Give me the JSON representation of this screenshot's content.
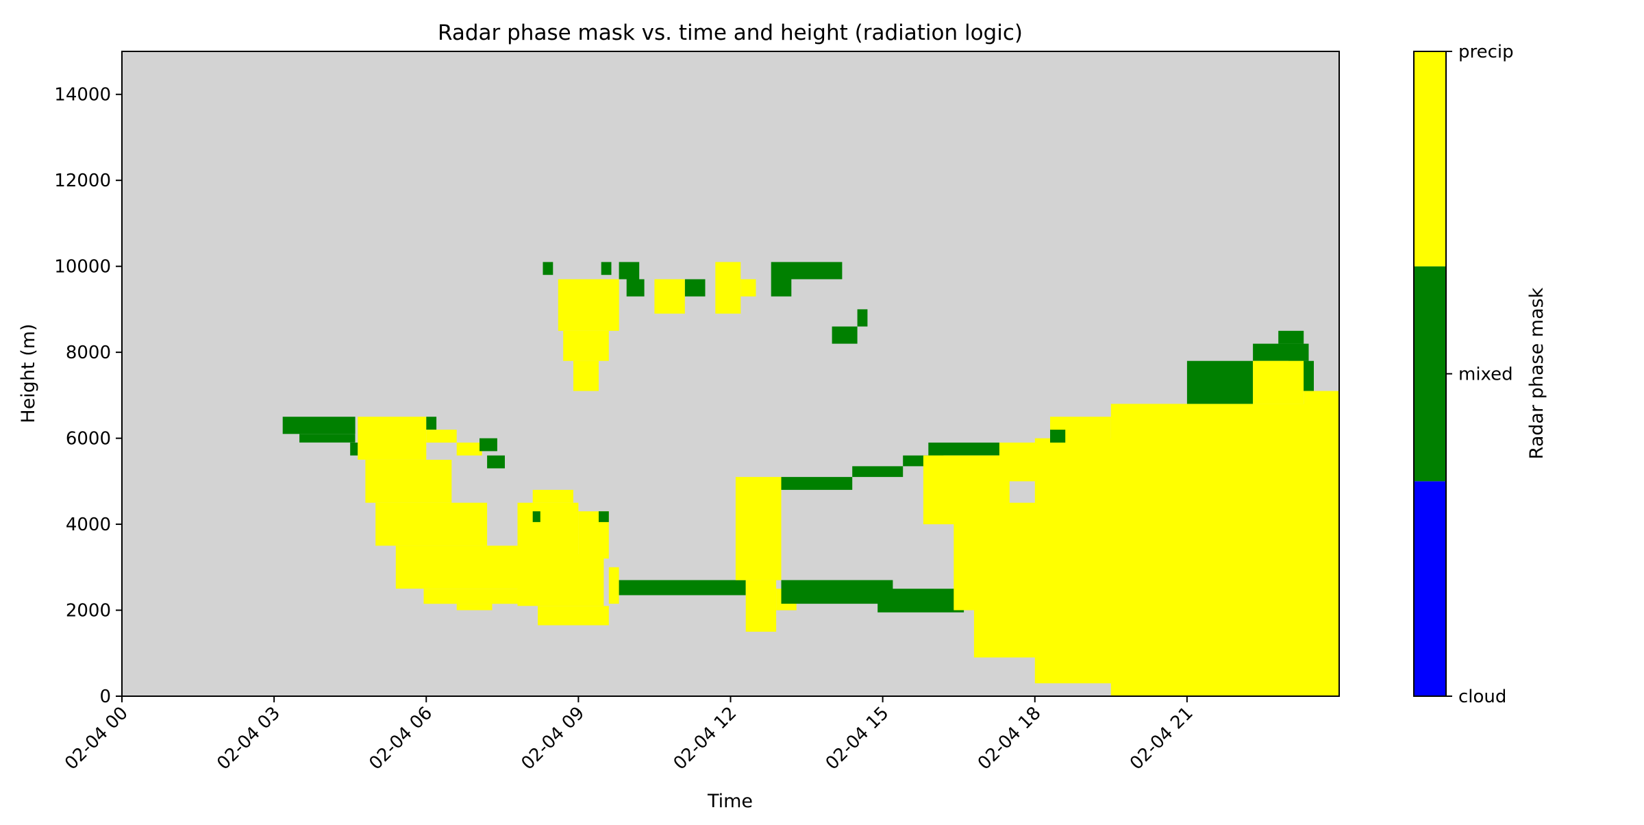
{
  "chart_data": {
    "type": "heatmap",
    "title": "Radar phase mask vs. time and height (radiation logic)",
    "xlabel": "Time",
    "ylabel": "Height (m)",
    "x_unit": "hours since 02-04 00:00",
    "xlim": [
      0,
      24
    ],
    "ylim": [
      0,
      15000
    ],
    "x_ticks": [
      0,
      3,
      6,
      9,
      12,
      15,
      18,
      21
    ],
    "x_tick_labels": [
      "02-04 00",
      "02-04 03",
      "02-04 06",
      "02-04 09",
      "02-04 12",
      "02-04 15",
      "02-04 18",
      "02-04 21"
    ],
    "y_ticks": [
      0,
      2000,
      4000,
      6000,
      8000,
      10000,
      12000,
      14000
    ],
    "y_tick_labels": [
      "0",
      "2000",
      "4000",
      "6000",
      "8000",
      "10000",
      "12000",
      "14000"
    ],
    "background_color": "#d3d3d3",
    "classes": [
      {
        "name": "cloud",
        "value": 0,
        "color": "#0000ff"
      },
      {
        "name": "mixed",
        "value": 1,
        "color": "#008000"
      },
      {
        "name": "precip",
        "value": 2,
        "color": "#ffff00"
      }
    ],
    "colorbar": {
      "label": "Radar phase mask",
      "tick_labels": [
        "cloud",
        "mixed",
        "precip"
      ]
    },
    "regions": [
      {
        "cls": "mixed",
        "t": [
          3.17,
          4.6
        ],
        "h": [
          6100,
          6500
        ]
      },
      {
        "cls": "mixed",
        "t": [
          3.5,
          4.6
        ],
        "h": [
          5900,
          6100
        ]
      },
      {
        "cls": "mixed",
        "t": [
          4.5,
          4.65
        ],
        "h": [
          5600,
          5900
        ]
      },
      {
        "cls": "precip",
        "t": [
          4.65,
          6.0
        ],
        "h": [
          5500,
          6500
        ]
      },
      {
        "cls": "precip",
        "t": [
          4.8,
          6.5
        ],
        "h": [
          4500,
          5500
        ]
      },
      {
        "cls": "precip",
        "t": [
          5.0,
          7.2
        ],
        "h": [
          3500,
          4500
        ]
      },
      {
        "cls": "precip",
        "t": [
          5.4,
          7.8
        ],
        "h": [
          2500,
          3500
        ]
      },
      {
        "cls": "precip",
        "t": [
          5.95,
          8.8
        ],
        "h": [
          2150,
          2500
        ]
      },
      {
        "cls": "precip",
        "t": [
          6.6,
          7.3
        ],
        "h": [
          2000,
          2150
        ]
      },
      {
        "cls": "precip",
        "t": [
          6.0,
          6.6
        ],
        "h": [
          5900,
          6200
        ]
      },
      {
        "cls": "precip",
        "t": [
          6.6,
          7.1
        ],
        "h": [
          5600,
          5900
        ]
      },
      {
        "cls": "mixed",
        "t": [
          6.0,
          6.2
        ],
        "h": [
          6200,
          6500
        ]
      },
      {
        "cls": "mixed",
        "t": [
          7.05,
          7.4
        ],
        "h": [
          5700,
          6000
        ]
      },
      {
        "cls": "mixed",
        "t": [
          7.2,
          7.55
        ],
        "h": [
          5300,
          5600
        ]
      },
      {
        "cls": "precip",
        "t": [
          7.8,
          9.0
        ],
        "h": [
          3300,
          4500
        ]
      },
      {
        "cls": "precip",
        "t": [
          7.8,
          9.5
        ],
        "h": [
          2100,
          3300
        ]
      },
      {
        "cls": "precip",
        "t": [
          8.2,
          9.6
        ],
        "h": [
          1650,
          2100
        ]
      },
      {
        "cls": "precip",
        "t": [
          8.1,
          8.9
        ],
        "h": [
          4500,
          4800
        ]
      },
      {
        "cls": "precip",
        "t": [
          9.0,
          9.6
        ],
        "h": [
          3200,
          4300
        ]
      },
      {
        "cls": "mixed",
        "t": [
          8.1,
          8.25
        ],
        "h": [
          4050,
          4300
        ]
      },
      {
        "cls": "mixed",
        "t": [
          9.4,
          9.6
        ],
        "h": [
          4050,
          4300
        ]
      },
      {
        "cls": "precip",
        "t": [
          9.6,
          9.8
        ],
        "h": [
          2150,
          3000
        ]
      },
      {
        "cls": "mixed",
        "t": [
          9.8,
          12.3
        ],
        "h": [
          2350,
          2700
        ]
      },
      {
        "cls": "precip",
        "t": [
          12.1,
          13.0
        ],
        "h": [
          2700,
          5100
        ]
      },
      {
        "cls": "precip",
        "t": [
          12.3,
          12.9
        ],
        "h": [
          1500,
          2700
        ]
      },
      {
        "cls": "precip",
        "t": [
          12.9,
          13.3
        ],
        "h": [
          2000,
          2500
        ]
      },
      {
        "cls": "mixed",
        "t": [
          13.0,
          15.2
        ],
        "h": [
          2150,
          2700
        ]
      },
      {
        "cls": "mixed",
        "t": [
          14.9,
          16.6
        ],
        "h": [
          1950,
          2500
        ]
      },
      {
        "cls": "mixed",
        "t": [
          13.0,
          14.4
        ],
        "h": [
          4800,
          5100
        ]
      },
      {
        "cls": "mixed",
        "t": [
          14.4,
          15.4
        ],
        "h": [
          5100,
          5350
        ]
      },
      {
        "cls": "mixed",
        "t": [
          15.4,
          16.2
        ],
        "h": [
          5350,
          5600
        ]
      },
      {
        "cls": "mixed",
        "t": [
          15.9,
          17.3
        ],
        "h": [
          5600,
          5900
        ]
      },
      {
        "cls": "precip",
        "t": [
          15.8,
          17.5
        ],
        "h": [
          4000,
          5600
        ]
      },
      {
        "cls": "precip",
        "t": [
          16.4,
          18.3
        ],
        "h": [
          2000,
          4500
        ]
      },
      {
        "cls": "precip",
        "t": [
          16.8,
          24.0
        ],
        "h": [
          900,
          2300
        ]
      },
      {
        "cls": "precip",
        "t": [
          18.0,
          24.0
        ],
        "h": [
          300,
          6000
        ]
      },
      {
        "cls": "precip",
        "t": [
          19.5,
          24.0
        ],
        "h": [
          0,
          6800
        ]
      },
      {
        "cls": "precip",
        "t": [
          17.3,
          18.3
        ],
        "h": [
          5000,
          5900
        ]
      },
      {
        "cls": "precip",
        "t": [
          18.3,
          19.5
        ],
        "h": [
          5000,
          6500
        ]
      },
      {
        "cls": "mixed",
        "t": [
          18.3,
          18.6
        ],
        "h": [
          5900,
          6200
        ]
      },
      {
        "cls": "mixed",
        "t": [
          21.0,
          22.3
        ],
        "h": [
          6800,
          7800
        ]
      },
      {
        "cls": "mixed",
        "t": [
          22.3,
          23.4
        ],
        "h": [
          7800,
          8200
        ]
      },
      {
        "cls": "mixed",
        "t": [
          22.8,
          23.3
        ],
        "h": [
          8200,
          8500
        ]
      },
      {
        "cls": "mixed",
        "t": [
          23.0,
          23.5
        ],
        "h": [
          7100,
          7800
        ]
      },
      {
        "cls": "precip",
        "t": [
          22.3,
          23.3
        ],
        "h": [
          6800,
          7800
        ]
      },
      {
        "cls": "precip",
        "t": [
          23.3,
          24.0
        ],
        "h": [
          6500,
          7100
        ]
      },
      {
        "cls": "precip",
        "t": [
          8.6,
          9.8
        ],
        "h": [
          8500,
          9700
        ]
      },
      {
        "cls": "precip",
        "t": [
          8.7,
          9.6
        ],
        "h": [
          7800,
          8500
        ]
      },
      {
        "cls": "precip",
        "t": [
          8.9,
          9.4
        ],
        "h": [
          7100,
          7800
        ]
      },
      {
        "cls": "mixed",
        "t": [
          8.3,
          8.5
        ],
        "h": [
          9800,
          10100
        ]
      },
      {
        "cls": "mixed",
        "t": [
          9.45,
          9.65
        ],
        "h": [
          9800,
          10100
        ]
      },
      {
        "cls": "mixed",
        "t": [
          9.8,
          10.2
        ],
        "h": [
          9700,
          10100
        ]
      },
      {
        "cls": "mixed",
        "t": [
          9.95,
          10.3
        ],
        "h": [
          9300,
          9700
        ]
      },
      {
        "cls": "precip",
        "t": [
          10.5,
          11.1
        ],
        "h": [
          8900,
          9700
        ]
      },
      {
        "cls": "mixed",
        "t": [
          11.1,
          11.5
        ],
        "h": [
          9300,
          9700
        ]
      },
      {
        "cls": "precip",
        "t": [
          11.7,
          12.2
        ],
        "h": [
          8900,
          10100
        ]
      },
      {
        "cls": "precip",
        "t": [
          12.2,
          12.5
        ],
        "h": [
          9300,
          9700
        ]
      },
      {
        "cls": "mixed",
        "t": [
          12.8,
          14.2
        ],
        "h": [
          9700,
          10100
        ]
      },
      {
        "cls": "mixed",
        "t": [
          12.8,
          13.2
        ],
        "h": [
          9300,
          9700
        ]
      },
      {
        "cls": "mixed",
        "t": [
          14.0,
          14.5
        ],
        "h": [
          8200,
          8600
        ]
      },
      {
        "cls": "mixed",
        "t": [
          14.5,
          14.7
        ],
        "h": [
          8600,
          9000
        ]
      }
    ]
  }
}
